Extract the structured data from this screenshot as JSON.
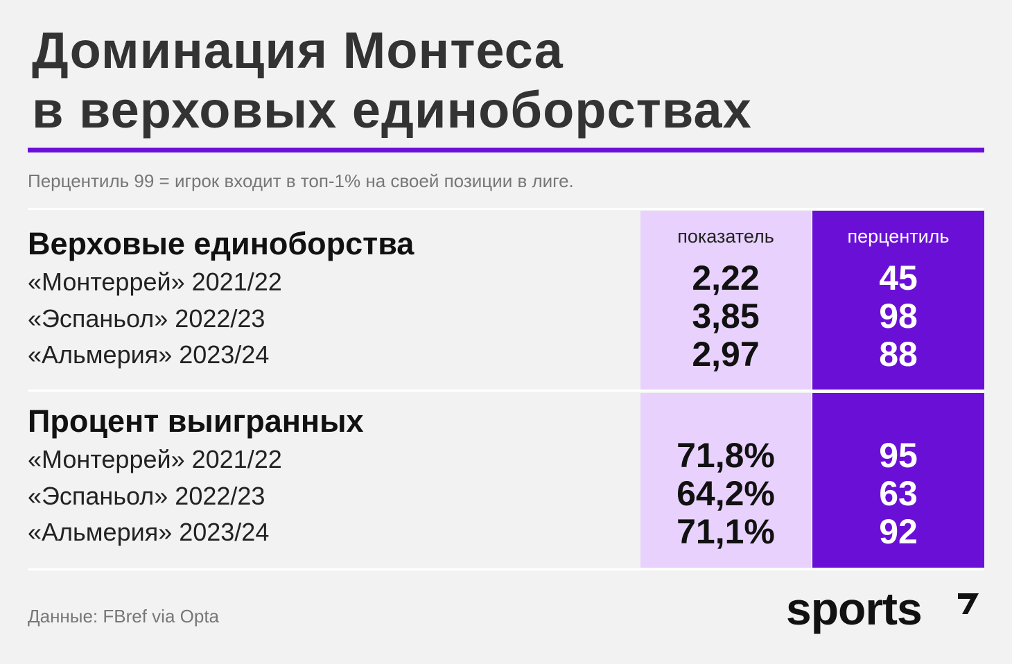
{
  "title": {
    "line1": "Доминация Монтеса",
    "line2": "в верховых единоборствах"
  },
  "subtitle": "Перцентиль 99 = игрок входит в топ-1% на своей позиции в лиге.",
  "columns": {
    "value": "показатель",
    "percentile": "перцентиль"
  },
  "colors": {
    "accent": "#6a10d6",
    "light_column": "#e8d2fd",
    "background": "#f2f2f2"
  },
  "chart_data": {
    "type": "table",
    "columns": [
      "показатель",
      "перцентиль"
    ],
    "sections": [
      {
        "title": "Верховые единоборства",
        "rows": [
          {
            "label": "«Монтеррей» 2021/22",
            "value": "2,22",
            "percentile": "45"
          },
          {
            "label": "«Эспаньол» 2022/23",
            "value": "3,85",
            "percentile": "98"
          },
          {
            "label": "«Альмерия» 2023/24",
            "value": "2,97",
            "percentile": "88"
          }
        ]
      },
      {
        "title": "Процент выигранных",
        "rows": [
          {
            "label": "«Монтеррей» 2021/22",
            "value": "71,8%",
            "percentile": "95"
          },
          {
            "label": "«Эспаньол» 2022/23",
            "value": "64,2%",
            "percentile": "63"
          },
          {
            "label": "«Альмерия» 2023/24",
            "value": "71,1%",
            "percentile": "92"
          }
        ]
      }
    ]
  },
  "source": "Данные: FBref via Opta",
  "logo": {
    "text": "sports",
    "icon": "sports-logo-mark-icon"
  }
}
